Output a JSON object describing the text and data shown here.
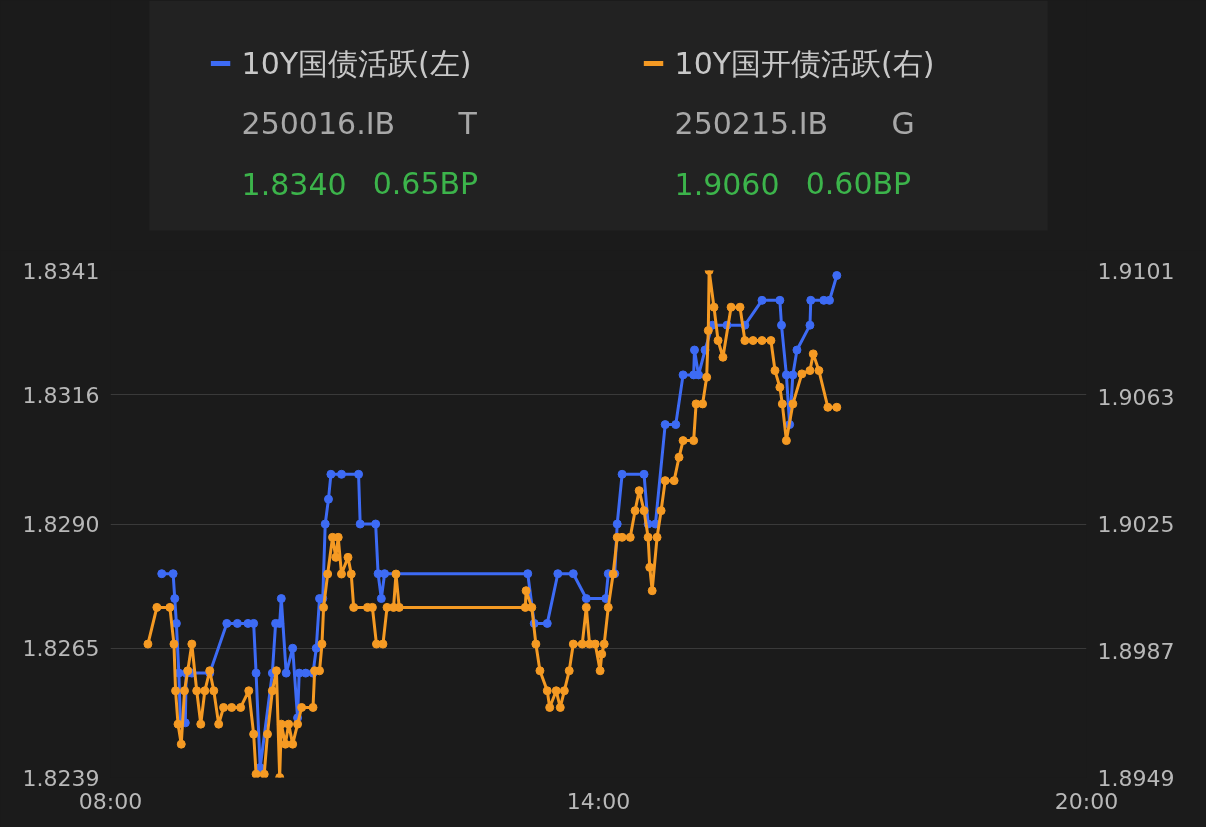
{
  "chart_data": {
    "type": "line",
    "legend": "top",
    "grid": "y",
    "marker": "circle",
    "line_style": "solid",
    "annotations": [
      "250016.IB",
      "T",
      "1.8340",
      "0.65BP",
      "250215.IB",
      "G",
      "1.9060",
      "0.60BP"
    ],
    "xlim": [
      8,
      20
    ],
    "xticks": [
      {
        "value": 8,
        "label": "08:00"
      },
      {
        "value": 14,
        "label": "14:00"
      },
      {
        "value": 20,
        "label": "20:00"
      }
    ],
    "ylim": [
      1.8239,
      1.8341
    ],
    "yticks": [
      1.8239,
      1.8265,
      {
        "value": 1.829,
        "label": "1.8290"
      },
      1.8316,
      1.8341
    ],
    "y2lim": [
      1.8949,
      1.9101
    ],
    "y2ticks": [
      1.8949,
      1.8987,
      1.9025,
      1.9063,
      1.9101
    ],
    "series": [
      {
        "name": "10Y国债活跃(左)",
        "color": "#3d6bf5",
        "axis": "y",
        "x": [
          8.63,
          8.77,
          8.79,
          8.81,
          8.84,
          8.86,
          8.92,
          8.93,
          9.0,
          9.22,
          9.43,
          9.56,
          9.69,
          9.76,
          9.79,
          9.84,
          9.99,
          10.03,
          10.08,
          10.1,
          10.16,
          10.24,
          10.3,
          10.32,
          10.4,
          10.49,
          10.53,
          10.57,
          10.61,
          10.64,
          10.68,
          10.71,
          10.84,
          11.05,
          11.07,
          11.26,
          11.29,
          11.33,
          11.37,
          13.13,
          13.21,
          13.37,
          13.5,
          13.69,
          13.85,
          14.09,
          14.12,
          14.2,
          14.23,
          14.29,
          14.56,
          14.61,
          14.7,
          14.82,
          14.95,
          15.04,
          15.17,
          15.18,
          15.23,
          15.31,
          15.4,
          15.58,
          15.8,
          16.01,
          16.23,
          16.25,
          16.31,
          16.35,
          16.39,
          16.44,
          16.6,
          16.61,
          16.77,
          16.84,
          16.93
        ],
        "values": [
          1.828,
          1.828,
          1.8275,
          1.827,
          1.826,
          1.825,
          1.825,
          1.826,
          1.826,
          1.826,
          1.827,
          1.827,
          1.827,
          1.827,
          1.826,
          1.8241,
          1.826,
          1.827,
          1.827,
          1.8275,
          1.826,
          1.8265,
          1.8251,
          1.826,
          1.826,
          1.826,
          1.8265,
          1.8275,
          1.8275,
          1.829,
          1.8295,
          1.83,
          1.83,
          1.83,
          1.829,
          1.829,
          1.828,
          1.8275,
          1.828,
          1.828,
          1.827,
          1.827,
          1.828,
          1.828,
          1.8275,
          1.8275,
          1.828,
          1.828,
          1.829,
          1.83,
          1.83,
          1.829,
          1.829,
          1.831,
          1.831,
          1.832,
          1.832,
          1.8325,
          1.832,
          1.8325,
          1.833,
          1.833,
          1.833,
          1.8335,
          1.8335,
          1.833,
          1.832,
          1.831,
          1.832,
          1.8325,
          1.833,
          1.8335,
          1.8335,
          1.8335,
          1.834
        ]
      },
      {
        "name": "10Y国开债活跃(右)",
        "color": "#f59a23",
        "axis": "y2",
        "x": [
          8.46,
          8.57,
          8.73,
          8.78,
          8.8,
          8.83,
          8.87,
          8.91,
          8.95,
          9.0,
          9.06,
          9.11,
          9.16,
          9.22,
          9.27,
          9.33,
          9.39,
          9.49,
          9.6,
          9.7,
          9.76,
          9.79,
          9.89,
          9.93,
          9.99,
          10.04,
          10.08,
          10.1,
          10.15,
          10.19,
          10.24,
          10.3,
          10.35,
          10.49,
          10.51,
          10.57,
          10.6,
          10.62,
          10.67,
          10.73,
          10.77,
          10.8,
          10.84,
          10.92,
          10.96,
          10.99,
          11.16,
          11.22,
          11.27,
          11.35,
          11.4,
          11.48,
          11.51,
          11.55,
          13.1,
          13.11,
          13.18,
          13.23,
          13.28,
          13.37,
          13.4,
          13.48,
          13.53,
          13.58,
          13.64,
          13.69,
          13.8,
          13.85,
          13.89,
          13.96,
          14.02,
          14.04,
          14.07,
          14.12,
          14.18,
          14.23,
          14.29,
          14.39,
          14.45,
          14.5,
          14.56,
          14.61,
          14.63,
          14.66,
          14.72,
          14.77,
          14.82,
          14.93,
          14.99,
          15.04,
          15.17,
          15.2,
          15.28,
          15.33,
          15.35,
          15.36,
          15.42,
          15.47,
          15.53,
          15.63,
          15.74,
          15.8,
          15.9,
          16.01,
          16.12,
          16.17,
          16.23,
          16.26,
          16.31,
          16.39,
          16.5,
          16.6,
          16.64,
          16.71,
          16.82,
          16.93
        ],
        "values": [
          1.8989,
          1.9,
          1.9,
          1.8989,
          1.8975,
          1.8965,
          1.8959,
          1.8975,
          1.8981,
          1.8989,
          1.8975,
          1.8965,
          1.8975,
          1.8981,
          1.8975,
          1.8965,
          1.897,
          1.897,
          1.897,
          1.8975,
          1.8962,
          1.895,
          1.895,
          1.8962,
          1.8975,
          1.8981,
          1.8949,
          1.8965,
          1.8959,
          1.8965,
          1.8959,
          1.8965,
          1.897,
          1.897,
          1.8981,
          1.8981,
          1.8989,
          1.9,
          1.901,
          1.9021,
          1.9015,
          1.9021,
          1.901,
          1.9015,
          1.901,
          1.9,
          1.9,
          1.9,
          1.8989,
          1.8989,
          1.9,
          1.9,
          1.901,
          1.9,
          1.9,
          1.9005,
          1.9,
          1.8989,
          1.8981,
          1.8975,
          1.897,
          1.8975,
          1.897,
          1.8975,
          1.8981,
          1.8989,
          1.8989,
          1.9,
          1.8989,
          1.8989,
          1.8981,
          1.8986,
          1.8989,
          1.9,
          1.901,
          1.9021,
          1.9021,
          1.9021,
          1.9029,
          1.9035,
          1.9029,
          1.9021,
          1.9012,
          1.9005,
          1.9021,
          1.9029,
          1.9038,
          1.9038,
          1.9045,
          1.905,
          1.905,
          1.9061,
          1.9061,
          1.9069,
          1.9083,
          1.9101,
          1.909,
          1.908,
          1.9075,
          1.909,
          1.909,
          1.908,
          1.908,
          1.908,
          1.908,
          1.9071,
          1.9066,
          1.9061,
          1.905,
          1.9061,
          1.907,
          1.9071,
          1.9076,
          1.9071,
          1.906,
          1.906
        ]
      }
    ]
  }
}
